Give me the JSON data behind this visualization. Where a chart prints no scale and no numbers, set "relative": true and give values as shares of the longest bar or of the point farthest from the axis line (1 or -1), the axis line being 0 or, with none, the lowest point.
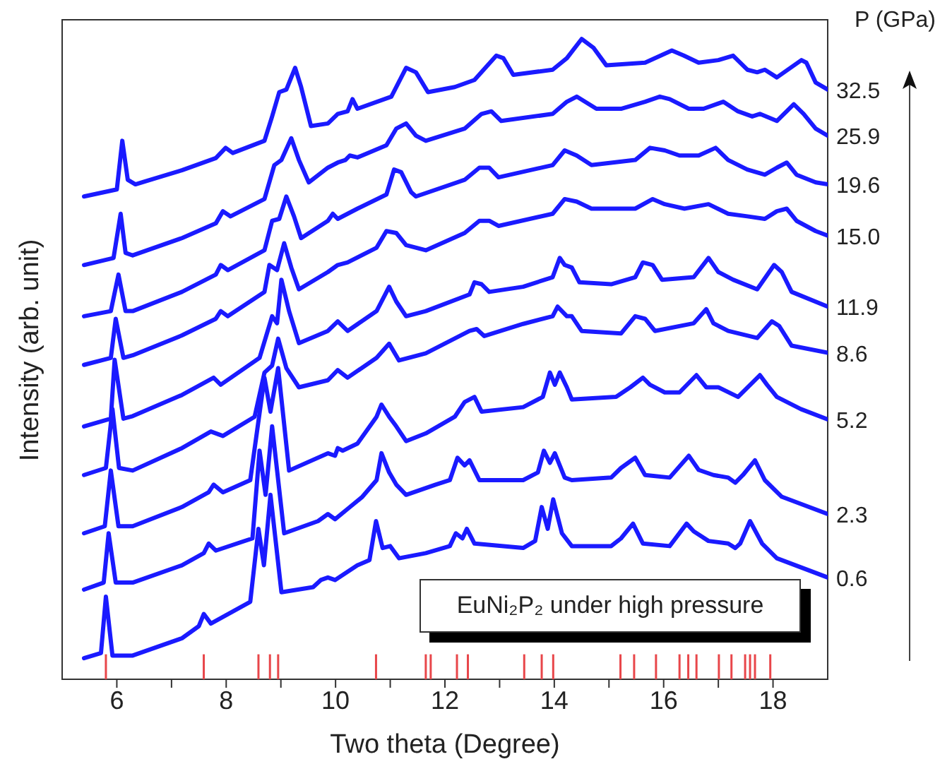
{
  "chart_data": {
    "type": "line",
    "relative": true,
    "xlabel": "Two theta (Degree)",
    "ylabel": "Intensity (arb. unit)",
    "legend_title": "P (GPa)",
    "annotations": [
      "EuNi₂P₂ under high pressure"
    ],
    "xlim": [
      5,
      19
    ],
    "xticks": [
      6,
      {
        "value": 7,
        "label": null
      },
      8,
      {
        "value": 9,
        "label": null
      },
      10,
      {
        "value": 11,
        "label": null
      },
      12,
      {
        "value": 13,
        "label": null
      },
      14,
      {
        "value": 15,
        "label": null
      },
      16,
      {
        "value": 17,
        "label": null
      },
      18
    ],
    "series": [
      {
        "name": "32.5",
        "color": "#1a1aff",
        "x": [
          5.4,
          6.0,
          6.1,
          6.2,
          6.34,
          7.19,
          7.81,
          7.99,
          8.12,
          8.7,
          8.84,
          8.97,
          9.1,
          9.26,
          9.37,
          9.55,
          9.86,
          10.04,
          10.22,
          10.31,
          10.4,
          11.02,
          11.29,
          11.47,
          11.69,
          12.18,
          12.54,
          12.94,
          13.07,
          13.25,
          13.97,
          14.23,
          14.5,
          14.72,
          14.95,
          15.66,
          16.15,
          16.37,
          16.64,
          17.0,
          17.27,
          17.53,
          17.71,
          17.85,
          18.07,
          18.52,
          18.61,
          18.78,
          19.0
        ],
        "values": [
          0.754,
          0.765,
          0.841,
          0.78,
          0.773,
          0.795,
          0.814,
          0.83,
          0.822,
          0.841,
          0.879,
          0.917,
          0.921,
          0.955,
          0.925,
          0.864,
          0.868,
          0.883,
          0.887,
          0.906,
          0.891,
          0.91,
          0.955,
          0.948,
          0.917,
          0.925,
          0.936,
          0.974,
          0.97,
          0.944,
          0.952,
          0.97,
          1.0,
          0.986,
          0.959,
          0.963,
          0.982,
          0.974,
          0.963,
          0.967,
          0.974,
          0.952,
          0.948,
          0.952,
          0.94,
          0.967,
          0.963,
          0.932,
          0.921
        ]
      },
      {
        "name": "25.9",
        "color": "#1a1aff",
        "x": [
          5.4,
          5.94,
          6.07,
          6.16,
          6.29,
          7.19,
          7.81,
          7.94,
          8.08,
          8.7,
          8.88,
          9.01,
          9.19,
          9.33,
          9.51,
          9.86,
          10.04,
          10.18,
          10.26,
          10.4,
          10.93,
          11.11,
          11.29,
          11.47,
          11.65,
          12.36,
          12.67,
          12.85,
          13.03,
          13.97,
          14.23,
          14.41,
          14.77,
          15.22,
          15.66,
          15.93,
          16.11,
          16.46,
          16.73,
          17.09,
          17.36,
          17.62,
          17.76,
          18.07,
          18.38,
          18.56,
          18.78,
          19.0
        ],
        "values": [
          0.647,
          0.658,
          0.727,
          0.666,
          0.662,
          0.689,
          0.712,
          0.731,
          0.723,
          0.75,
          0.803,
          0.811,
          0.845,
          0.811,
          0.776,
          0.799,
          0.807,
          0.811,
          0.818,
          0.815,
          0.834,
          0.86,
          0.868,
          0.849,
          0.841,
          0.86,
          0.883,
          0.887,
          0.872,
          0.883,
          0.902,
          0.91,
          0.891,
          0.891,
          0.902,
          0.91,
          0.906,
          0.891,
          0.891,
          0.902,
          0.887,
          0.879,
          0.883,
          0.872,
          0.898,
          0.883,
          0.86,
          0.849
        ]
      },
      {
        "name": "19.6",
        "color": "#1a1aff",
        "x": [
          5.4,
          5.89,
          6.03,
          6.16,
          6.29,
          7.19,
          7.81,
          7.9,
          8.03,
          8.7,
          8.84,
          8.97,
          9.1,
          9.24,
          9.37,
          9.86,
          9.95,
          10.04,
          10.22,
          10.4,
          10.93,
          11.07,
          11.2,
          11.38,
          11.47,
          12.36,
          12.63,
          12.81,
          12.98,
          13.97,
          14.19,
          14.41,
          14.68,
          15.48,
          15.75,
          16.02,
          16.29,
          16.64,
          16.95,
          17.18,
          17.53,
          17.85,
          18.07,
          18.25,
          18.43,
          18.78,
          19.0
        ],
        "values": [
          0.567,
          0.575,
          0.632,
          0.575,
          0.575,
          0.605,
          0.632,
          0.647,
          0.639,
          0.67,
          0.716,
          0.719,
          0.754,
          0.723,
          0.689,
          0.716,
          0.727,
          0.719,
          0.727,
          0.735,
          0.757,
          0.796,
          0.792,
          0.761,
          0.754,
          0.78,
          0.799,
          0.799,
          0.784,
          0.803,
          0.826,
          0.818,
          0.803,
          0.811,
          0.83,
          0.826,
          0.818,
          0.818,
          0.83,
          0.811,
          0.796,
          0.788,
          0.799,
          0.807,
          0.788,
          0.776,
          0.773
        ]
      },
      {
        "name": "15.0",
        "color": "#1a1aff",
        "x": [
          5.4,
          5.89,
          5.98,
          6.12,
          6.29,
          7.19,
          7.81,
          7.9,
          8.03,
          8.7,
          8.79,
          8.93,
          9.06,
          9.19,
          9.33,
          9.86,
          10.04,
          10.22,
          10.75,
          10.93,
          11.11,
          11.29,
          11.65,
          12.36,
          12.63,
          12.81,
          12.98,
          13.97,
          14.19,
          14.41,
          14.68,
          15.48,
          15.8,
          16.02,
          16.38,
          16.82,
          17.18,
          17.53,
          17.85,
          18.07,
          18.25,
          18.43,
          18.78,
          19.0
        ],
        "values": [
          0.491,
          0.502,
          0.563,
          0.502,
          0.506,
          0.537,
          0.563,
          0.575,
          0.567,
          0.605,
          0.647,
          0.639,
          0.681,
          0.643,
          0.609,
          0.636,
          0.647,
          0.651,
          0.674,
          0.7,
          0.697,
          0.678,
          0.67,
          0.697,
          0.716,
          0.716,
          0.708,
          0.727,
          0.75,
          0.746,
          0.735,
          0.735,
          0.75,
          0.742,
          0.735,
          0.742,
          0.727,
          0.723,
          0.719,
          0.731,
          0.735,
          0.716,
          0.7,
          0.693
        ]
      },
      {
        "name": "11.9",
        "color": "#1a1aff",
        "x": [
          5.4,
          5.89,
          5.96,
          6.12,
          6.29,
          7.19,
          7.77,
          7.9,
          8.61,
          8.84,
          8.93,
          9.01,
          9.15,
          9.33,
          9.86,
          10.04,
          10.22,
          10.75,
          10.98,
          11.11,
          11.29,
          11.65,
          12.45,
          12.54,
          12.67,
          12.81,
          13.43,
          13.97,
          14.1,
          14.19,
          14.32,
          14.46,
          15.04,
          15.48,
          15.62,
          15.8,
          15.97,
          16.55,
          16.82,
          17.0,
          17.27,
          17.71,
          18.02,
          18.16,
          18.34,
          19.0
        ],
        "values": [
          0.395,
          0.407,
          0.499,
          0.407,
          0.411,
          0.444,
          0.471,
          0.46,
          0.502,
          0.567,
          0.556,
          0.624,
          0.575,
          0.525,
          0.544,
          0.559,
          0.544,
          0.575,
          0.613,
          0.59,
          0.567,
          0.575,
          0.601,
          0.62,
          0.617,
          0.605,
          0.613,
          0.628,
          0.658,
          0.647,
          0.643,
          0.62,
          0.617,
          0.628,
          0.651,
          0.647,
          0.624,
          0.628,
          0.658,
          0.636,
          0.624,
          0.609,
          0.647,
          0.636,
          0.605,
          0.582
        ]
      },
      {
        "name": "8.6",
        "color": "#1a1aff",
        "x": [
          5.4,
          5.8,
          5.92,
          6.04,
          6.29,
          7.19,
          7.72,
          7.94,
          8.52,
          8.7,
          8.84,
          8.95,
          9.1,
          9.33,
          9.86,
          10.04,
          10.22,
          10.75,
          10.98,
          11.16,
          11.65,
          12.45,
          12.58,
          12.72,
          13.43,
          13.97,
          14.06,
          14.23,
          14.32,
          14.5,
          15.22,
          15.48,
          15.66,
          15.84,
          16.55,
          16.78,
          16.91,
          17.18,
          17.71,
          17.98,
          18.11,
          18.34,
          19.0
        ],
        "values": [
          0.319,
          0.33,
          0.422,
          0.33,
          0.326,
          0.361,
          0.387,
          0.38,
          0.41,
          0.479,
          0.49,
          0.532,
          0.486,
          0.456,
          0.467,
          0.483,
          0.471,
          0.502,
          0.524,
          0.498,
          0.509,
          0.544,
          0.547,
          0.536,
          0.555,
          0.567,
          0.582,
          0.567,
          0.567,
          0.544,
          0.54,
          0.567,
          0.563,
          0.544,
          0.556,
          0.578,
          0.556,
          0.544,
          0.533,
          0.559,
          0.552,
          0.521,
          0.51
        ]
      },
      {
        "name": "5.2",
        "color": "#1a1aff",
        "x": [
          5.4,
          5.78,
          5.89,
          6.03,
          6.29,
          7.19,
          7.68,
          7.77,
          7.94,
          8.44,
          8.7,
          8.81,
          8.95,
          9.15,
          9.86,
          9.99,
          10.04,
          10.13,
          10.4,
          10.75,
          10.84,
          10.98,
          11.11,
          11.29,
          11.65,
          12.18,
          12.36,
          12.54,
          12.67,
          13.43,
          13.79,
          13.92,
          14.01,
          14.1,
          14.23,
          14.32,
          15.13,
          15.39,
          15.62,
          15.75,
          16.02,
          16.29,
          16.6,
          16.78,
          17.0,
          17.36,
          17.76,
          17.89,
          18.07,
          18.51,
          19.0
        ],
        "values": [
          0.228,
          0.239,
          0.326,
          0.239,
          0.239,
          0.269,
          0.292,
          0.304,
          0.292,
          0.311,
          0.471,
          0.418,
          0.486,
          0.326,
          0.353,
          0.349,
          0.361,
          0.357,
          0.368,
          0.41,
          0.429,
          0.41,
          0.395,
          0.372,
          0.384,
          0.41,
          0.433,
          0.441,
          0.418,
          0.425,
          0.441,
          0.479,
          0.46,
          0.479,
          0.456,
          0.437,
          0.441,
          0.456,
          0.471,
          0.46,
          0.448,
          0.448,
          0.475,
          0.456,
          0.456,
          0.441,
          0.475,
          0.46,
          0.441,
          0.422,
          0.406
        ]
      },
      {
        "name": "2.3",
        "color": "#1a1aff",
        "x": [
          5.4,
          5.76,
          5.85,
          5.98,
          6.29,
          7.19,
          7.59,
          7.68,
          7.81,
          8.48,
          8.61,
          8.72,
          8.84,
          9.06,
          9.68,
          9.86,
          9.99,
          10.22,
          10.49,
          10.75,
          10.84,
          10.98,
          11.11,
          11.29,
          11.83,
          12.09,
          12.23,
          12.36,
          12.45,
          12.63,
          13.43,
          13.7,
          13.81,
          13.92,
          14.01,
          14.19,
          14.32,
          15.04,
          15.22,
          15.48,
          15.66,
          16.11,
          16.46,
          16.64,
          16.91,
          17.18,
          17.31,
          17.45,
          17.67,
          17.85,
          18.16,
          19.0
        ],
        "values": [
          0.14,
          0.151,
          0.228,
          0.151,
          0.151,
          0.178,
          0.197,
          0.212,
          0.201,
          0.22,
          0.357,
          0.288,
          0.395,
          0.228,
          0.247,
          0.258,
          0.25,
          0.266,
          0.285,
          0.311,
          0.353,
          0.323,
          0.304,
          0.288,
          0.304,
          0.311,
          0.346,
          0.334,
          0.342,
          0.311,
          0.311,
          0.323,
          0.357,
          0.338,
          0.353,
          0.315,
          0.311,
          0.315,
          0.33,
          0.346,
          0.319,
          0.315,
          0.349,
          0.327,
          0.319,
          0.315,
          0.307,
          0.319,
          0.342,
          0.311,
          0.285,
          0.258
        ]
      },
      {
        "name": "0.6",
        "color": "#1a1aff",
        "x": [
          5.4,
          5.71,
          5.8,
          5.92,
          6.29,
          7.19,
          7.5,
          7.59,
          7.72,
          8.44,
          8.59,
          8.69,
          8.81,
          9.01,
          9.59,
          9.73,
          9.86,
          9.99,
          10.4,
          10.62,
          10.74,
          10.86,
          11.0,
          11.16,
          11.65,
          12.09,
          12.2,
          12.32,
          12.4,
          12.54,
          13.43,
          13.65,
          13.77,
          13.88,
          13.98,
          14.14,
          14.32,
          15.04,
          15.22,
          15.44,
          15.62,
          16.11,
          16.42,
          16.55,
          16.82,
          17.18,
          17.31,
          17.4,
          17.58,
          17.8,
          18.07,
          19.0
        ],
        "values": [
          0.033,
          0.041,
          0.129,
          0.037,
          0.037,
          0.064,
          0.083,
          0.102,
          0.087,
          0.121,
          0.235,
          0.178,
          0.288,
          0.136,
          0.144,
          0.155,
          0.159,
          0.155,
          0.178,
          0.186,
          0.247,
          0.205,
          0.208,
          0.189,
          0.197,
          0.208,
          0.228,
          0.22,
          0.235,
          0.212,
          0.205,
          0.216,
          0.269,
          0.235,
          0.281,
          0.228,
          0.208,
          0.208,
          0.22,
          0.243,
          0.212,
          0.208,
          0.243,
          0.231,
          0.216,
          0.212,
          0.205,
          0.212,
          0.247,
          0.212,
          0.189,
          0.159
        ]
      },
      {
        "type": "bar",
        "color": "#e8464a",
        "x": [
          5.8,
          7.59,
          8.59,
          8.8,
          8.95,
          10.74,
          11.65,
          11.74,
          12.22,
          12.42,
          13.45,
          13.77,
          13.98,
          15.21,
          15.46,
          15.86,
          16.29,
          16.45,
          16.6,
          17.01,
          17.24,
          17.49,
          17.58,
          17.67,
          17.95
        ],
        "values": [
          0.039,
          0.039,
          0.039,
          0.039,
          0.039,
          0.039,
          0.039,
          0.039,
          0.039,
          0.039,
          0.039,
          0.039,
          0.039,
          0.039,
          0.039,
          0.039,
          0.039,
          0.039,
          0.039,
          0.039,
          0.039,
          0.039,
          0.039,
          0.039,
          0.039
        ]
      }
    ]
  }
}
